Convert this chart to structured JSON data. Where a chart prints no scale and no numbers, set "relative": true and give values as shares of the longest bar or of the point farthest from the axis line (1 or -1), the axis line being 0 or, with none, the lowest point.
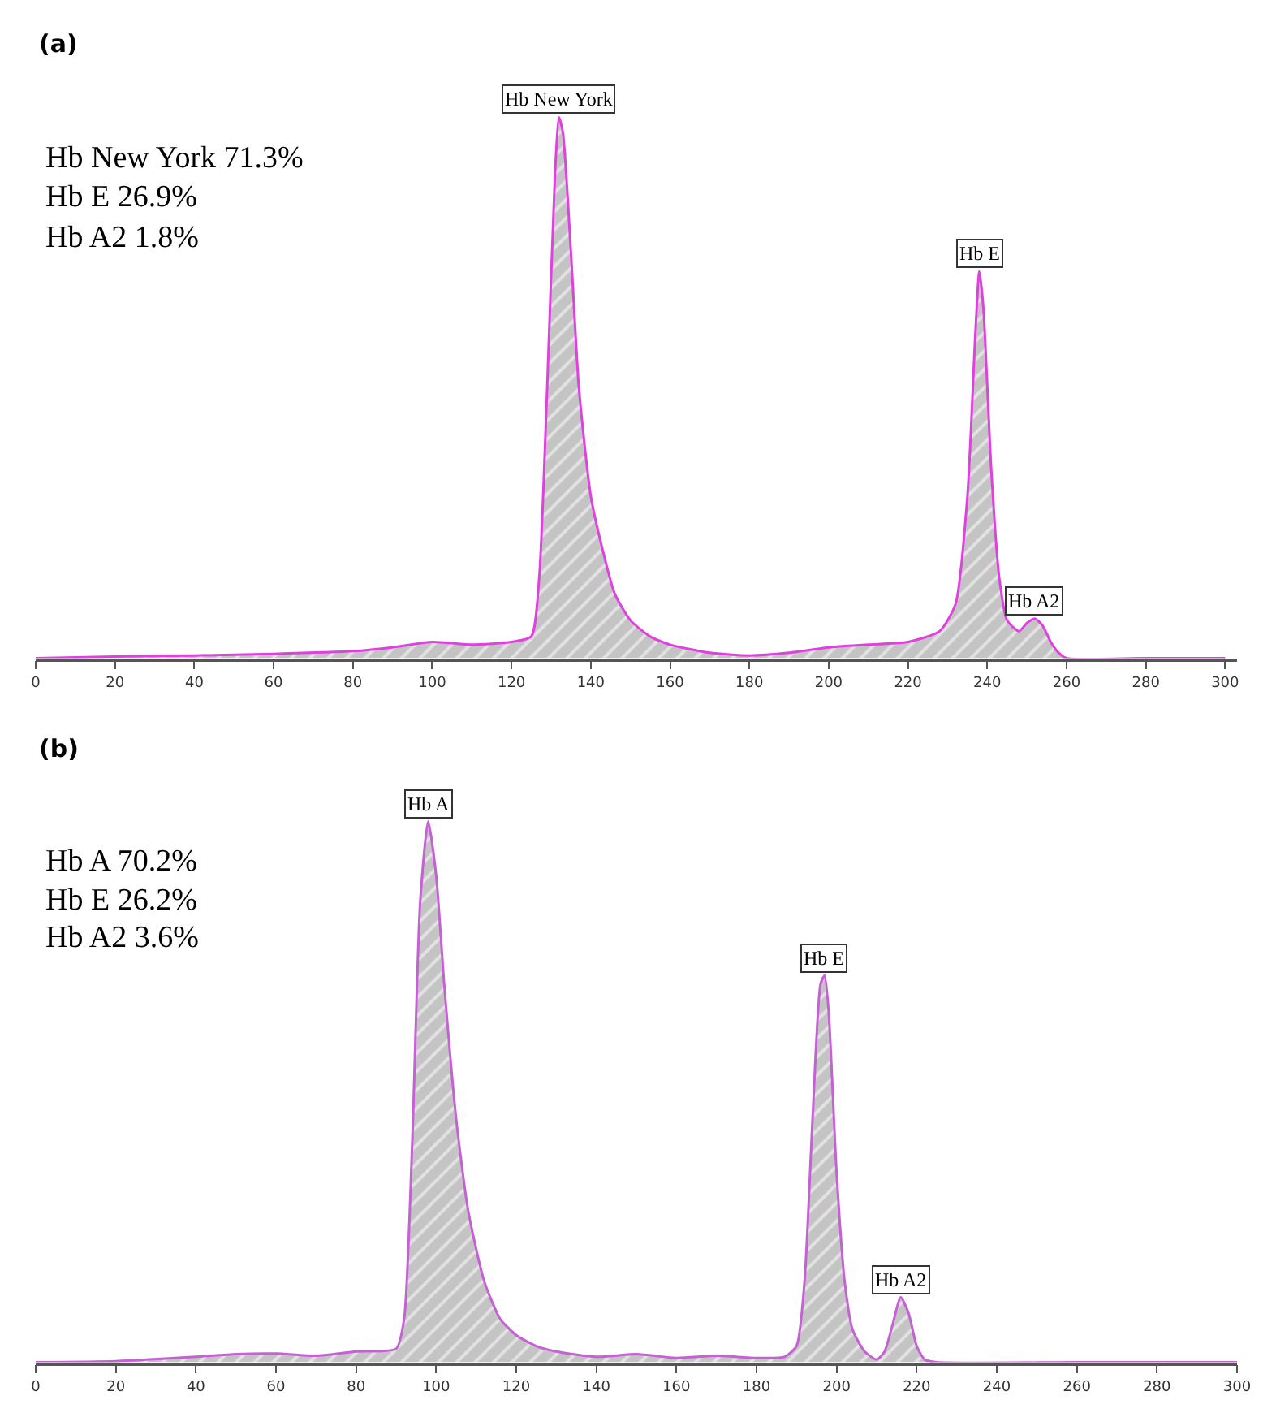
{
  "chart_data": [
    {
      "type": "area",
      "title": "(a)",
      "relative": true,
      "xlim": [
        0,
        303
      ],
      "xticks": [
        0,
        20,
        40,
        60,
        80,
        100,
        120,
        140,
        160,
        180,
        200,
        220,
        240,
        260,
        280,
        300
      ],
      "marker": "none",
      "annotations": [
        "Hb New York 71.3%",
        "Hb E 26.9%",
        "Hb A2 1.8%",
        {
          "text": "Hb New York",
          "x": 132,
          "y": 1.0
        },
        {
          "text": "Hb E",
          "x": 238,
          "y": 0.715
        },
        {
          "text": "Hb A2",
          "x": 252,
          "y": 0.073
        }
      ],
      "series": [
        {
          "color": "#e040e0",
          "x": [
            0,
            20,
            40,
            60,
            80,
            90,
            100,
            110,
            120,
            125,
            127,
            129,
            131,
            132,
            133,
            135,
            137,
            140,
            143,
            146,
            150,
            155,
            160,
            170,
            180,
            190,
            200,
            210,
            220,
            228,
            232,
            235,
            237,
            238,
            239,
            241,
            243,
            245,
            248,
            250,
            252,
            254,
            256,
            258,
            260,
            280,
            300
          ],
          "values": [
            0,
            0.003,
            0.005,
            0.008,
            0.013,
            0.02,
            0.03,
            0.025,
            0.03,
            0.04,
            0.15,
            0.5,
            0.9,
            1.0,
            0.97,
            0.75,
            0.5,
            0.3,
            0.2,
            0.12,
            0.07,
            0.04,
            0.025,
            0.01,
            0.005,
            0.01,
            0.02,
            0.025,
            0.03,
            0.05,
            0.1,
            0.3,
            0.6,
            0.715,
            0.65,
            0.35,
            0.15,
            0.07,
            0.05,
            0.065,
            0.073,
            0.06,
            0.03,
            0.01,
            0,
            0,
            0
          ]
        }
      ]
    },
    {
      "type": "area",
      "title": "(b)",
      "relative": true,
      "xlim": [
        0,
        300
      ],
      "xticks": [
        0,
        20,
        40,
        60,
        80,
        100,
        120,
        140,
        160,
        180,
        200,
        220,
        240,
        260,
        280,
        300
      ],
      "marker": "none",
      "annotations": [
        "Hb A 70.2%",
        "Hb E 26.2%",
        "Hb A2 3.6%",
        {
          "text": "Hb A",
          "x": 98,
          "y": 1.0
        },
        {
          "text": "Hb E",
          "x": 197,
          "y": 0.715
        },
        {
          "text": "Hb A2",
          "x": 216,
          "y": 0.12
        }
      ],
      "series": [
        {
          "color": "#c560d5",
          "x": [
            0,
            20,
            40,
            50,
            60,
            70,
            80,
            90,
            92,
            94,
            96,
            98,
            100,
            102,
            105,
            108,
            112,
            116,
            120,
            125,
            130,
            140,
            150,
            160,
            170,
            180,
            187,
            190,
            192,
            194,
            196,
            197,
            198,
            200,
            202,
            204,
            207,
            210,
            212,
            214,
            216,
            218,
            220,
            222,
            225,
            260,
            300
          ],
          "values": [
            0,
            0.002,
            0.01,
            0.015,
            0.016,
            0.012,
            0.02,
            0.025,
            0.08,
            0.4,
            0.85,
            1.0,
            0.9,
            0.7,
            0.45,
            0.28,
            0.15,
            0.08,
            0.05,
            0.03,
            0.02,
            0.01,
            0.015,
            0.008,
            0.012,
            0.008,
            0.01,
            0.03,
            0.15,
            0.45,
            0.7,
            0.715,
            0.65,
            0.35,
            0.15,
            0.06,
            0.02,
            0.005,
            0.02,
            0.07,
            0.12,
            0.09,
            0.03,
            0.005,
            0,
            0,
            0
          ]
        }
      ]
    }
  ]
}
